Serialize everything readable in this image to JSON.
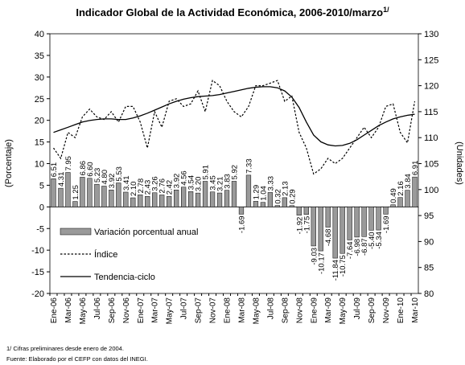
{
  "chart_data": {
    "type": "bar",
    "title": "Indicador Global de la Actividad Económica, 2006-2010/marzo",
    "title_sup": "1/",
    "y_label": "(Porcentaje)",
    "y2_label": "(Unidades)",
    "categories": [
      "Ene-06",
      null,
      "Mar-06",
      null,
      "May-06",
      null,
      "Jul-06",
      null,
      "Sep-06",
      null,
      "Nov-06",
      null,
      "Ene-07",
      null,
      "Mar-07",
      null,
      "May-07",
      null,
      "Jul-07",
      null,
      "Sep-07",
      null,
      "Nov-07",
      null,
      "Ene-08",
      null,
      "Mar-08",
      null,
      "May-08",
      null,
      "Jul-08",
      null,
      "Sep-08",
      null,
      "Nov-08",
      null,
      "Ene-09",
      null,
      "Mar-09",
      null,
      "May-09",
      null,
      "Jul-09",
      null,
      "Sep-09",
      null,
      "Nov-09",
      null,
      "Ene-10",
      null,
      "Mar-10"
    ],
    "series": [
      {
        "name": "Variación porcentual anual",
        "type": "bar",
        "color": "#9a9a9a",
        "values": [
          6.51,
          4.31,
          7.95,
          1.25,
          6.86,
          6.6,
          5.23,
          4.8,
          3.92,
          5.53,
          3.41,
          2.1,
          2.78,
          2.43,
          3.26,
          2.76,
          2.42,
          3.92,
          4.56,
          3.54,
          3.2,
          5.91,
          3.45,
          3.21,
          3.83,
          5.92,
          -1.69,
          7.33,
          1.29,
          1.04,
          3.33,
          0.32,
          2.13,
          0.29,
          -1.92,
          -1.75,
          -9.03,
          -10.17,
          -4.68,
          -11.84,
          -10.75,
          -7.64,
          -6.98,
          -6.87,
          -5.4,
          -5.34,
          -1.69,
          0.49,
          2.16,
          3.84,
          6.91
        ],
        "value_labels": [
          "6.51",
          "4.31",
          "7.95",
          "1.25",
          "6.86",
          "6.60",
          "5.23",
          "4.80",
          "3.92",
          "5.53",
          "3.41",
          "2.10",
          "2.78",
          "2.43",
          "3.26",
          "2.76",
          "2.42",
          "3.92",
          "4.56",
          "3.54",
          "3.20",
          "5.91",
          "3.45",
          "3.21",
          "3.83",
          "5.92",
          "-1.69",
          "7.33",
          "1.29",
          "1.04",
          "3.33",
          "0.32",
          "2.13",
          "0.29",
          "-1.92",
          "-1.75",
          "-9.03",
          "-10.17",
          "-4.68",
          "-11.84",
          "-10.75",
          "-7.64",
          "-6.98",
          "-6.87",
          "-5.40",
          "-5.34",
          "-1.69",
          "0.49",
          "2.16",
          "3.84",
          "6.91"
        ]
      },
      {
        "name": "Índice",
        "type": "line",
        "dash": true,
        "axis": "y2",
        "color": "#000000",
        "values": [
          108,
          106,
          111,
          110,
          114,
          115.5,
          114,
          113.5,
          115,
          113,
          116,
          116,
          113,
          108,
          115,
          112,
          117,
          117.5,
          116,
          116.5,
          119,
          115,
          121,
          120,
          117,
          115,
          114,
          116,
          120,
          120,
          120.5,
          121,
          117,
          118,
          111,
          108,
          103,
          104,
          106,
          105,
          106,
          108,
          110,
          112,
          110,
          112,
          116,
          116.5,
          111,
          109,
          117
        ]
      },
      {
        "name": "Tendencia-ciclo",
        "type": "line",
        "axis": "y2",
        "color": "#000000",
        "values": [
          111,
          111.5,
          112,
          112.5,
          113,
          113.3,
          113.5,
          113.6,
          113.6,
          113.5,
          113.5,
          113.8,
          114.2,
          114.7,
          115.3,
          115.9,
          116.5,
          117,
          117.4,
          117.7,
          117.9,
          118,
          118.1,
          118.3,
          118.6,
          118.9,
          119.2,
          119.5,
          119.7,
          119.8,
          119.8,
          119.6,
          119,
          117.8,
          115.8,
          113,
          110.5,
          109.2,
          108.6,
          108.4,
          108.5,
          108.9,
          109.6,
          110.5,
          111.4,
          112.3,
          113,
          113.6,
          114,
          114.3,
          114.5
        ]
      }
    ],
    "ylim": [
      -20,
      40
    ],
    "yticks": [
      -20,
      -15,
      -10,
      -5,
      0,
      5,
      10,
      15,
      20,
      25,
      30,
      35,
      40
    ],
    "y2lim": [
      80,
      130
    ],
    "y2ticks": [
      80,
      85,
      90,
      95,
      100,
      105,
      110,
      115,
      120,
      125,
      130
    ],
    "footnotes": [
      "1/ Cifras preliminares desde enero de 2004.",
      "Fuente: Elaborado por el CEFP con datos del INEGI."
    ]
  }
}
